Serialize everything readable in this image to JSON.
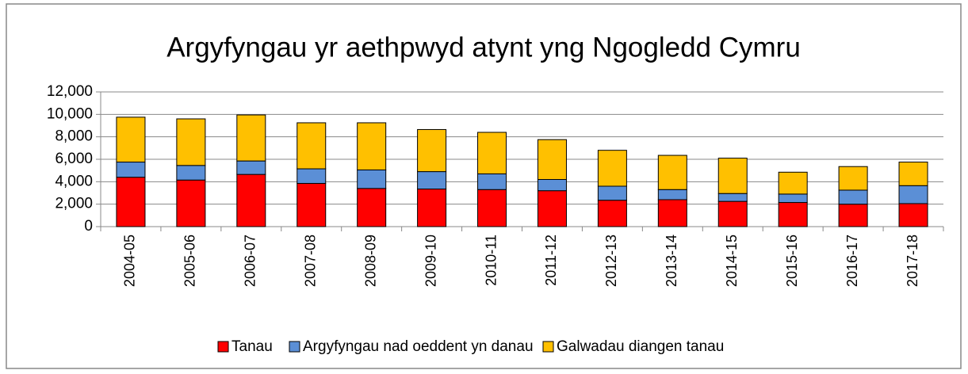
{
  "chart_data": {
    "type": "stacked_bar",
    "title": "Argyfyngau yr aethpwyd atynt yng Ngogledd Cymru",
    "categories": [
      "2004-05",
      "2005-06",
      "2006-07",
      "2007-08",
      "2008-09",
      "2009-10",
      "2010-11",
      "2011-12",
      "2012-13",
      "2013-14",
      "2014-15",
      "2015-16",
      "2016-17",
      "2017-18"
    ],
    "series": [
      {
        "name": "Tanau",
        "color": "#ff0000",
        "values": [
          4400,
          4150,
          4650,
          3850,
          3400,
          3350,
          3300,
          3200,
          2350,
          2400,
          2250,
          2150,
          2000,
          2050
        ]
      },
      {
        "name": "Argyfyngau nad oeddent yn danau",
        "color": "#5b8fd6",
        "values": [
          1350,
          1300,
          1200,
          1300,
          1650,
          1550,
          1400,
          1000,
          1250,
          900,
          700,
          750,
          1250,
          1600
        ]
      },
      {
        "name": "Galwadau diangen tanau",
        "color": "#ffc000",
        "values": [
          4000,
          4150,
          4100,
          4100,
          4200,
          3750,
          3700,
          3550,
          3200,
          3050,
          3150,
          1950,
          2100,
          2100
        ]
      }
    ],
    "ylim": [
      0,
      12000
    ],
    "yticks": [
      0,
      {
        "value": 2000,
        "label": "2,000"
      },
      {
        "value": 4000,
        "label": "4,000"
      },
      {
        "value": 6000,
        "label": "6,000"
      },
      {
        "value": 8000,
        "label": "8,000"
      },
      {
        "value": 10000,
        "label": "10,000"
      },
      {
        "value": 12000,
        "label": "12,000"
      }
    ],
    "grid": true,
    "legend": "bottom"
  }
}
